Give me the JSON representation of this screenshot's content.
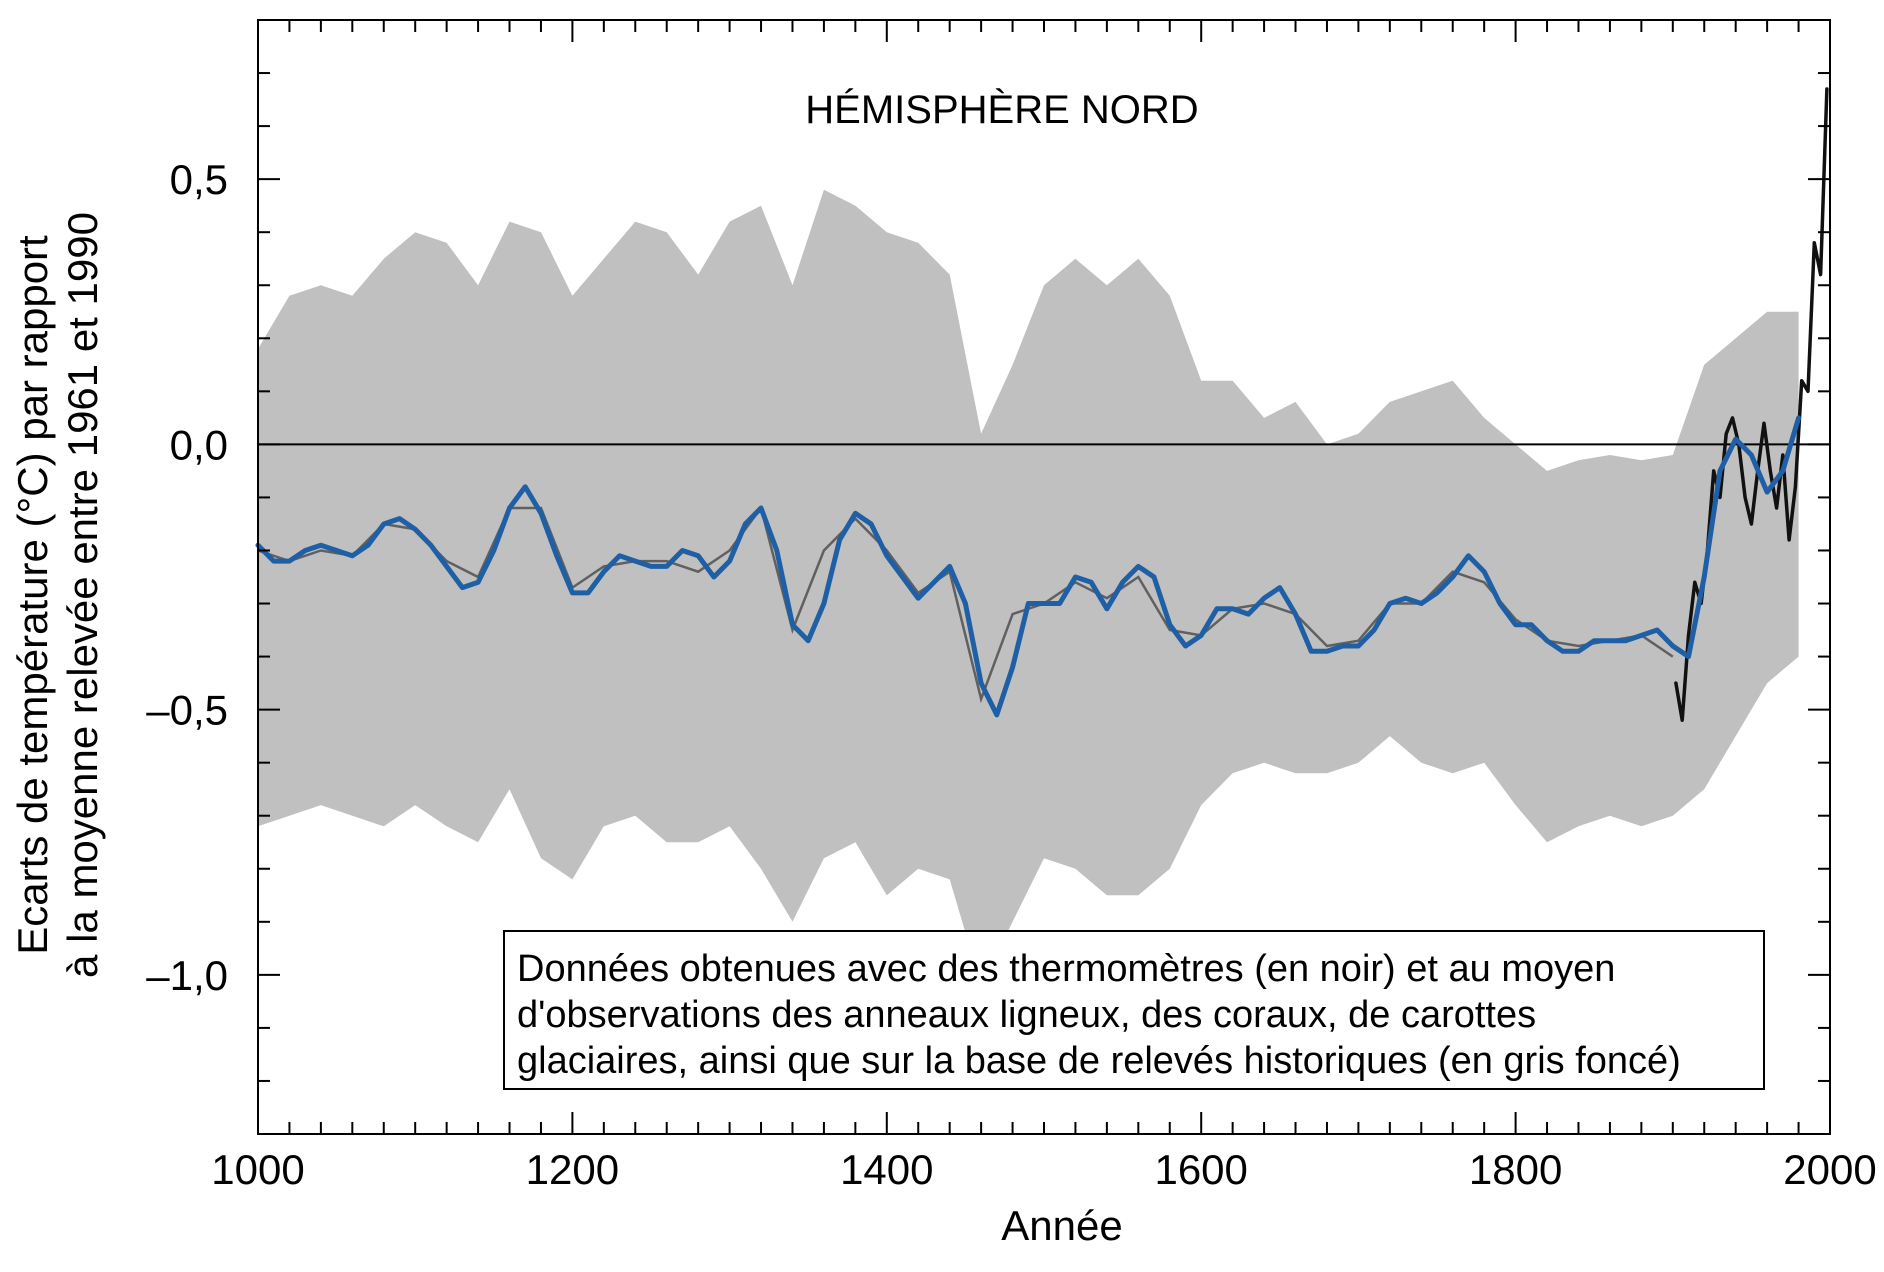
{
  "chart_data": {
    "type": "line",
    "title": "HÉMISPHÈRE NORD",
    "xlabel": "Année",
    "ylabel_line1": "Ecarts de température (°C) par rapport",
    "ylabel_line2": "à la moyenne relevée entre 1961 et 1990",
    "xlim": [
      1000,
      2000
    ],
    "ylim": [
      -1.3,
      0.8
    ],
    "x_ticks": [
      "1000",
      "1200",
      "1400",
      "1600",
      "1800",
      "2000"
    ],
    "y_ticks": [
      "0,5",
      "0,0",
      "–0,5",
      "–1,0"
    ],
    "y_tick_values": [
      0.5,
      0.0,
      -0.5,
      -1.0
    ],
    "reference_line": 0.0,
    "grid": false,
    "annotation": {
      "line1": "Données obtenues avec des thermomètres (en noir) et au moyen",
      "line2": "d'observations des anneaux ligneux, des coraux, de carottes",
      "line3": "glaciaires, ainsi que sur la base de relevés historiques (en gris foncé)"
    },
    "series": [
      {
        "kind": "smoothed",
        "color": "#1f5fa5",
        "x": [
          1000,
          1010,
          1020,
          1030,
          1040,
          1050,
          1060,
          1070,
          1080,
          1090,
          1100,
          1110,
          1120,
          1130,
          1140,
          1150,
          1160,
          1170,
          1180,
          1190,
          1200,
          1210,
          1220,
          1230,
          1240,
          1250,
          1260,
          1270,
          1280,
          1290,
          1300,
          1310,
          1320,
          1330,
          1340,
          1350,
          1360,
          1370,
          1380,
          1390,
          1400,
          1410,
          1420,
          1430,
          1440,
          1450,
          1460,
          1470,
          1480,
          1490,
          1500,
          1510,
          1520,
          1530,
          1540,
          1550,
          1560,
          1570,
          1580,
          1590,
          1600,
          1610,
          1620,
          1630,
          1640,
          1650,
          1660,
          1670,
          1680,
          1690,
          1700,
          1710,
          1720,
          1730,
          1740,
          1750,
          1760,
          1770,
          1780,
          1790,
          1800,
          1810,
          1820,
          1830,
          1840,
          1850,
          1860,
          1870,
          1880,
          1890,
          1900,
          1910,
          1920,
          1930,
          1940,
          1950,
          1960,
          1970,
          1980
        ],
        "y": [
          -0.19,
          -0.22,
          -0.22,
          -0.2,
          -0.19,
          -0.2,
          -0.21,
          -0.19,
          -0.15,
          -0.14,
          -0.16,
          -0.19,
          -0.23,
          -0.27,
          -0.26,
          -0.2,
          -0.12,
          -0.08,
          -0.13,
          -0.21,
          -0.28,
          -0.28,
          -0.24,
          -0.21,
          -0.22,
          -0.23,
          -0.23,
          -0.2,
          -0.21,
          -0.25,
          -0.22,
          -0.15,
          -0.12,
          -0.2,
          -0.34,
          -0.37,
          -0.3,
          -0.18,
          -0.13,
          -0.15,
          -0.21,
          -0.25,
          -0.29,
          -0.26,
          -0.23,
          -0.3,
          -0.45,
          -0.51,
          -0.42,
          -0.3,
          -0.3,
          -0.3,
          -0.25,
          -0.26,
          -0.31,
          -0.26,
          -0.23,
          -0.25,
          -0.34,
          -0.38,
          -0.36,
          -0.31,
          -0.31,
          -0.32,
          -0.29,
          -0.27,
          -0.32,
          -0.39,
          -0.39,
          -0.38,
          -0.38,
          -0.35,
          -0.3,
          -0.29,
          -0.3,
          -0.28,
          -0.25,
          -0.21,
          -0.24,
          -0.3,
          -0.34,
          -0.34,
          -0.37,
          -0.39,
          -0.39,
          -0.37,
          -0.37,
          -0.37,
          -0.36,
          -0.35,
          -0.38,
          -0.4,
          -0.25,
          -0.05,
          0.01,
          -0.02,
          -0.09,
          -0.05,
          0.05
        ]
      },
      {
        "kind": "instrumental",
        "color": "#111111",
        "x": [
          1902,
          1906,
          1910,
          1914,
          1918,
          1922,
          1926,
          1930,
          1934,
          1938,
          1942,
          1946,
          1950,
          1954,
          1958,
          1962,
          1966,
          1970,
          1974,
          1978,
          1982,
          1986,
          1990,
          1994,
          1998
        ],
        "y": [
          -0.45,
          -0.52,
          -0.36,
          -0.26,
          -0.3,
          -0.2,
          -0.05,
          -0.1,
          0.02,
          0.05,
          0.0,
          -0.1,
          -0.15,
          -0.05,
          0.04,
          -0.05,
          -0.12,
          -0.02,
          -0.18,
          -0.08,
          0.12,
          0.1,
          0.38,
          0.32,
          0.67
        ]
      }
    ],
    "uncertainty_band": {
      "color": "#c0c0c0",
      "x": [
        1000,
        1020,
        1040,
        1060,
        1080,
        1100,
        1120,
        1140,
        1160,
        1180,
        1200,
        1220,
        1240,
        1260,
        1280,
        1300,
        1320,
        1340,
        1360,
        1380,
        1400,
        1420,
        1440,
        1460,
        1480,
        1500,
        1520,
        1540,
        1560,
        1580,
        1600,
        1620,
        1640,
        1660,
        1680,
        1700,
        1720,
        1740,
        1760,
        1780,
        1800,
        1820,
        1840,
        1860,
        1880,
        1900,
        1920,
        1940,
        1960,
        1980
      ],
      "upper": [
        0.18,
        0.28,
        0.3,
        0.28,
        0.35,
        0.4,
        0.38,
        0.3,
        0.42,
        0.4,
        0.28,
        0.35,
        0.42,
        0.4,
        0.32,
        0.42,
        0.45,
        0.3,
        0.48,
        0.45,
        0.4,
        0.38,
        0.32,
        0.02,
        0.15,
        0.3,
        0.35,
        0.3,
        0.35,
        0.28,
        0.12,
        0.12,
        0.05,
        0.08,
        0.0,
        0.02,
        0.08,
        0.1,
        0.12,
        0.05,
        0.0,
        -0.05,
        -0.03,
        -0.02,
        -0.03,
        -0.02,
        0.15,
        0.2,
        0.25,
        0.25
      ],
      "lower": [
        -0.72,
        -0.7,
        -0.68,
        -0.7,
        -0.72,
        -0.68,
        -0.72,
        -0.75,
        -0.65,
        -0.78,
        -0.82,
        -0.72,
        -0.7,
        -0.75,
        -0.75,
        -0.72,
        -0.8,
        -0.9,
        -0.78,
        -0.75,
        -0.85,
        -0.8,
        -0.82,
        -1.02,
        -0.9,
        -0.78,
        -0.8,
        -0.85,
        -0.85,
        -0.8,
        -0.68,
        -0.62,
        -0.6,
        -0.62,
        -0.62,
        -0.6,
        -0.55,
        -0.6,
        -0.62,
        -0.6,
        -0.68,
        -0.75,
        -0.72,
        -0.7,
        -0.72,
        -0.7,
        -0.65,
        -0.55,
        -0.45,
        -0.4
      ]
    },
    "reconstruction": {
      "kind": "annual reconstruction",
      "color": "#606060",
      "x": [
        1000,
        1020,
        1040,
        1060,
        1080,
        1100,
        1120,
        1140,
        1160,
        1180,
        1200,
        1220,
        1240,
        1260,
        1280,
        1300,
        1320,
        1340,
        1360,
        1380,
        1400,
        1420,
        1440,
        1460,
        1480,
        1500,
        1520,
        1540,
        1560,
        1580,
        1600,
        1620,
        1640,
        1660,
        1680,
        1700,
        1720,
        1740,
        1760,
        1780,
        1800,
        1820,
        1840,
        1860,
        1880,
        1900
      ],
      "y": [
        -0.2,
        -0.22,
        -0.2,
        -0.21,
        -0.15,
        -0.16,
        -0.22,
        -0.25,
        -0.12,
        -0.12,
        -0.27,
        -0.23,
        -0.22,
        -0.22,
        -0.24,
        -0.2,
        -0.12,
        -0.35,
        -0.2,
        -0.14,
        -0.2,
        -0.28,
        -0.24,
        -0.48,
        -0.32,
        -0.3,
        -0.26,
        -0.29,
        -0.25,
        -0.35,
        -0.36,
        -0.31,
        -0.3,
        -0.32,
        -0.38,
        -0.37,
        -0.3,
        -0.3,
        -0.24,
        -0.26,
        -0.33,
        -0.37,
        -0.38,
        -0.37,
        -0.36,
        -0.4
      ]
    }
  }
}
